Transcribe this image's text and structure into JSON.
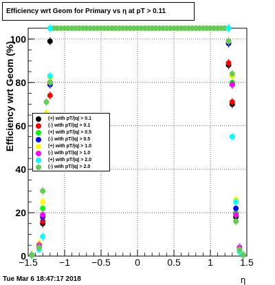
{
  "title": "Efficiency wrt Geom for Primary vs   η at pT > 0.11",
  "footer": "Tue Mar  6 18:47:17 2018",
  "chart_data": {
    "type": "scatter",
    "title": "Efficiency wrt Geom for Primary vs   η at pT > 0.11",
    "xlabel": "η",
    "ylabel": "Efficiency wrt Geom (%)",
    "xlim": [
      -1.5,
      1.5
    ],
    "ylim": [
      0,
      105
    ],
    "grid": true,
    "legend_position": "left-middle",
    "x_ticks": [
      "−1.5",
      "−1",
      "−0.5",
      "0",
      "0.5",
      "1",
      "1.5"
    ],
    "y_ticks": [
      "0",
      "20",
      "40",
      "60",
      "80",
      "100"
    ],
    "series": [
      {
        "name": "(+) with pT/|q| > 0.1",
        "color": "#000000",
        "x": [
          -1.45,
          -1.35,
          -1.3,
          -1.25,
          -1.2,
          1.25,
          1.3,
          1.35,
          1.4,
          1.45
        ],
        "y": [
          0.5,
          4,
          15,
          56,
          99,
          88,
          70,
          18,
          3,
          0.5
        ]
      },
      {
        "name": "(-) with pT/|q| > 0.1",
        "color": "#ff0000",
        "x": [
          -1.45,
          -1.35,
          -1.3,
          -1.25,
          -1.2,
          1.25,
          1.3,
          1.35,
          1.4,
          1.45
        ],
        "y": [
          0.5,
          4,
          16,
          58,
          74,
          89,
          71,
          19,
          3,
          0.5
        ]
      },
      {
        "name": "(+) with pT/|q| > 0.5",
        "color": "#00ff00",
        "x": [
          -1.45,
          -1.35,
          -1.3,
          -1.25,
          -1.2,
          1.25,
          1.3,
          1.35,
          1.4,
          1.45
        ],
        "y": [
          0.5,
          5,
          22,
          64,
          80,
          98,
          80,
          20,
          3,
          0.5
        ]
      },
      {
        "name": "(-) with pT/|q| > 0.5",
        "color": "#0000ff",
        "x": [
          -1.45,
          -1.35,
          -1.3,
          -1.25,
          -1.2,
          1.25,
          1.3,
          1.35,
          1.4,
          1.45
        ],
        "y": [
          0.5,
          5,
          18,
          63,
          79,
          98,
          79,
          22,
          3,
          0.5
        ]
      },
      {
        "name": "(+) with pT/|q| > 1.0",
        "color": "#ffff00",
        "x": [
          -1.45,
          -1.35,
          -1.3,
          -1.25,
          -1.2,
          1.25,
          1.3,
          1.35,
          1.4,
          1.45
        ],
        "y": [
          0.5,
          6,
          25,
          66,
          82,
          99,
          83,
          26,
          3,
          0.5
        ]
      },
      {
        "name": "(-) with pT/|q| > 1.0",
        "color": "#ff00ff",
        "x": [
          -1.45,
          -1.35,
          -1.3,
          -1.25,
          -1.2,
          1.25,
          1.3,
          1.35,
          1.4,
          1.45
        ],
        "y": [
          0.5,
          5,
          19,
          60,
          80,
          99,
          79,
          19,
          4,
          0.5
        ]
      },
      {
        "name": "(+) with pT/|q| > 2.0",
        "color": "#00ffff",
        "x": [
          -1.45,
          -1.35,
          -1.3,
          -1.25,
          -1.2,
          -1.2,
          1.25,
          1.3,
          1.35,
          1.4,
          1.45
        ],
        "y": [
          0.5,
          3,
          9,
          44,
          83,
          105,
          105,
          55,
          25,
          2,
          0.5
        ]
      },
      {
        "name": "(-) with pT/|q| > 2.0",
        "color": "#66cc55",
        "x": [
          -1.45,
          -1.35,
          -1.3,
          -1.25,
          -1.2,
          1.25,
          1.3,
          1.35,
          1.4,
          1.45
        ],
        "y": [
          0.5,
          4,
          30,
          71,
          80,
          99,
          84,
          16,
          3,
          0.5
        ]
      }
    ],
    "band": {
      "name": "(-) with pT/|q| > 2.0",
      "y": 105,
      "x_from": -1.2,
      "x_to": 1.25,
      "x_step": 0.05
    }
  }
}
